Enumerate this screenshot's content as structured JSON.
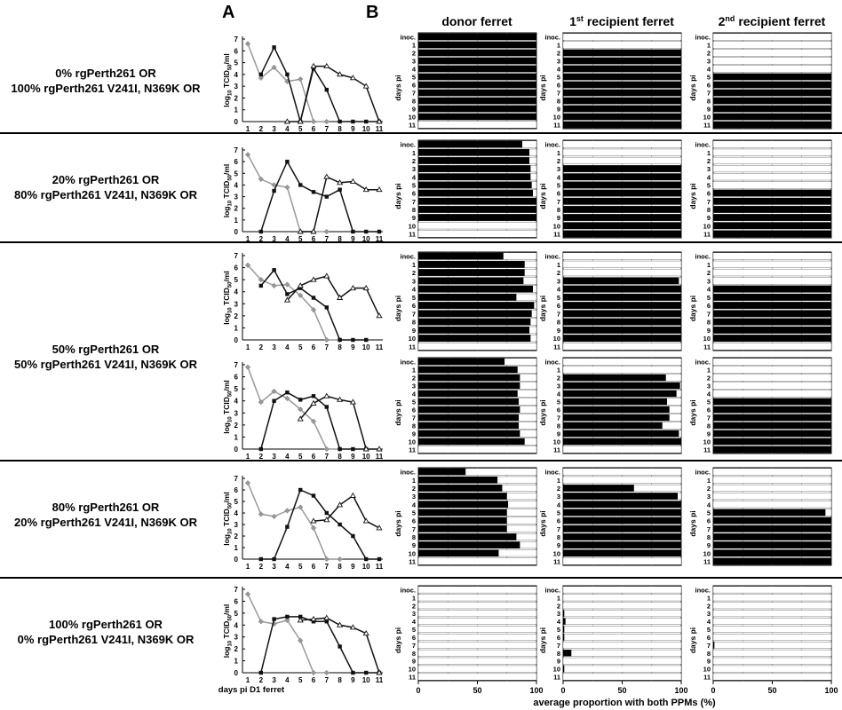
{
  "panel_letters": [
    "A",
    "B"
  ],
  "columns": [
    "donor ferret",
    "recipient ferret",
    "recipient ferret"
  ],
  "column_prefixes": [
    "",
    "1",
    "2"
  ],
  "column_sups": [
    "",
    "st",
    "nd"
  ],
  "groups": [
    {
      "line1": "0% rgPerth261 OR",
      "line2": "100% rgPerth261 V241I, N369K OR"
    },
    {
      "line1": "20% rgPerth261 OR",
      "line2": "80% rgPerth261 V241I, N369K OR"
    },
    {
      "line1": "50% rgPerth261 OR",
      "line2": "50% rgPerth261 V241I, N369K OR"
    },
    {
      "line1": "80% rgPerth261 OR",
      "line2": "20% rgPerth261 V241I, N369K OR"
    },
    {
      "line1": "100% rgPerth261 OR",
      "line2": "0% rgPerth261 V241I, N369K OR"
    }
  ],
  "ylabel_main": "log",
  "ylabel_sub": "10",
  "ylabel_mid": " TCID",
  "ylabel_sub2": "50",
  "ylabel_end": "/ml",
  "xlabel_a": "days pi D1 ferret",
  "xlabel_b": "average proportion with both PPMs (%)",
  "days_label": "days pi",
  "bar_rows": [
    "inoc.",
    "1",
    "2",
    "3",
    "4",
    "5",
    "6",
    "7",
    "8",
    "9",
    "10",
    "11"
  ],
  "bar_ticks": [
    "0",
    "50",
    "100"
  ],
  "chart_data": [
    {
      "type": "line",
      "panel": "A-1",
      "x": [
        1,
        2,
        3,
        4,
        5,
        6,
        7,
        8,
        9,
        10,
        11
      ],
      "ylim": [
        0,
        7
      ],
      "yticks": [
        "0",
        "1",
        "2",
        "3",
        "4",
        "5",
        "6",
        "7"
      ],
      "series": [
        {
          "marker": "grey-diamond",
          "color": "#999999",
          "values": [
            6.6,
            3.7,
            4.6,
            3.4,
            3.6,
            0,
            0,
            null,
            null,
            null,
            null
          ]
        },
        {
          "marker": "black-square",
          "color": "#111111",
          "values": [
            null,
            4.0,
            6.3,
            4.0,
            0,
            4.5,
            2.7,
            0,
            0,
            0,
            0
          ]
        },
        {
          "marker": "open-triangle",
          "color": "#111111",
          "values": [
            null,
            null,
            null,
            0,
            0,
            4.7,
            4.7,
            4.0,
            3.7,
            3.0,
            0
          ]
        }
      ]
    },
    {
      "type": "line",
      "panel": "A-2",
      "x": [
        1,
        2,
        3,
        4,
        5,
        6,
        7,
        8,
        9,
        10,
        11
      ],
      "ylim": [
        0,
        7
      ],
      "yticks": [
        "0",
        "1",
        "2",
        "3",
        "4",
        "5",
        "6",
        "7"
      ],
      "series": [
        {
          "marker": "grey-diamond",
          "color": "#999999",
          "values": [
            6.6,
            4.5,
            4.0,
            3.8,
            0,
            0,
            0,
            null,
            null,
            null,
            null
          ]
        },
        {
          "marker": "black-square",
          "color": "#111111",
          "values": [
            null,
            0,
            3.5,
            6.0,
            4.0,
            3.4,
            3.0,
            3.6,
            0,
            0,
            0
          ]
        },
        {
          "marker": "open-triangle",
          "color": "#111111",
          "values": [
            null,
            null,
            null,
            null,
            0,
            0,
            4.7,
            4.2,
            4.3,
            3.6,
            3.6
          ]
        }
      ]
    },
    {
      "type": "line",
      "panel": "A-3",
      "x": [
        1,
        2,
        3,
        4,
        5,
        6,
        7,
        8,
        9,
        10,
        11
      ],
      "ylim": [
        0,
        7
      ],
      "yticks": [
        "0",
        "1",
        "2",
        "3",
        "4",
        "5",
        "6",
        "7"
      ],
      "series": [
        {
          "marker": "grey-diamond",
          "color": "#999999",
          "values": [
            6.2,
            5.0,
            4.5,
            4.6,
            3.7,
            2.5,
            0,
            0,
            null,
            null,
            null
          ]
        },
        {
          "marker": "black-square",
          "color": "#111111",
          "values": [
            null,
            4.5,
            5.8,
            3.8,
            4.3,
            3.5,
            2.7,
            0,
            0,
            0,
            null
          ]
        },
        {
          "marker": "open-triangle",
          "color": "#111111",
          "values": [
            null,
            null,
            null,
            3.3,
            4.5,
            5.0,
            5.3,
            3.5,
            4.3,
            4.3,
            2.0
          ]
        }
      ]
    },
    {
      "type": "line",
      "panel": "A-4",
      "x": [
        1,
        2,
        3,
        4,
        5,
        6,
        7,
        8,
        9,
        10,
        11
      ],
      "ylim": [
        0,
        7
      ],
      "yticks": [
        "0",
        "1",
        "2",
        "3",
        "4",
        "5",
        "6",
        "7"
      ],
      "series": [
        {
          "marker": "grey-diamond",
          "color": "#999999",
          "values": [
            6.8,
            3.9,
            4.8,
            4.2,
            3.3,
            2.3,
            0,
            0,
            null,
            null,
            null
          ]
        },
        {
          "marker": "black-square",
          "color": "#111111",
          "values": [
            null,
            0,
            4.0,
            4.7,
            4.1,
            4.4,
            3.5,
            0,
            0,
            0,
            null
          ]
        },
        {
          "marker": "open-triangle",
          "color": "#111111",
          "values": [
            null,
            null,
            null,
            null,
            2.5,
            3.8,
            4.4,
            4.1,
            3.9,
            0,
            0
          ]
        }
      ]
    },
    {
      "type": "line",
      "panel": "A-5",
      "x": [
        1,
        2,
        3,
        4,
        5,
        6,
        7,
        8,
        9,
        10,
        11
      ],
      "ylim": [
        0,
        7
      ],
      "yticks": [
        "0",
        "1",
        "2",
        "3",
        "4",
        "5",
        "6",
        "7"
      ],
      "series": [
        {
          "marker": "grey-diamond",
          "color": "#999999",
          "values": [
            6.6,
            3.9,
            3.7,
            4.2,
            4.5,
            2.7,
            0,
            0,
            null,
            null,
            null
          ]
        },
        {
          "marker": "black-square",
          "color": "#111111",
          "values": [
            null,
            0,
            0,
            2.8,
            6.0,
            5.5,
            4.0,
            3.0,
            2.0,
            0,
            0
          ]
        },
        {
          "marker": "open-triangle",
          "color": "#111111",
          "values": [
            null,
            null,
            null,
            null,
            null,
            3.3,
            3.4,
            4.7,
            5.5,
            3.3,
            2.7
          ]
        }
      ]
    },
    {
      "type": "line",
      "panel": "A-6",
      "x": [
        1,
        2,
        3,
        4,
        5,
        6,
        7,
        8,
        9,
        10,
        11
      ],
      "ylim": [
        0,
        7
      ],
      "yticks": [
        "0",
        "1",
        "2",
        "3",
        "4",
        "5",
        "6",
        "7"
      ],
      "xlabel": "days pi D1 ferret",
      "series": [
        {
          "marker": "grey-diamond",
          "color": "#999999",
          "values": [
            6.6,
            4.3,
            4.1,
            4.4,
            2.7,
            0,
            0,
            null,
            null,
            null,
            null
          ]
        },
        {
          "marker": "black-square",
          "color": "#111111",
          "values": [
            null,
            0,
            4.5,
            4.7,
            4.7,
            4.3,
            4.3,
            2.2,
            0,
            0,
            0
          ]
        },
        {
          "marker": "open-triangle",
          "color": "#111111",
          "values": [
            null,
            null,
            null,
            null,
            4.4,
            4.5,
            4.6,
            4.0,
            3.8,
            3.3,
            0
          ]
        }
      ]
    },
    {
      "type": "bar",
      "panel": "B-1-donor",
      "row": 1,
      "col": 0,
      "categories": [
        "inoc.",
        "1",
        "2",
        "3",
        "4",
        "5",
        "6",
        "7",
        "8",
        "9",
        "10",
        "11"
      ],
      "values": [
        100,
        100,
        100,
        100,
        100,
        100,
        100,
        100,
        100,
        100,
        100,
        0
      ],
      "xlim": [
        0,
        100
      ]
    },
    {
      "type": "bar",
      "panel": "B-1-r1",
      "row": 1,
      "col": 1,
      "categories": [
        "inoc.",
        "1",
        "2",
        "3",
        "4",
        "5",
        "6",
        "7",
        "8",
        "9",
        "10",
        "11"
      ],
      "values": [
        0,
        0,
        100,
        100,
        100,
        100,
        100,
        100,
        100,
        100,
        100,
        100
      ],
      "xlim": [
        0,
        100
      ]
    },
    {
      "type": "bar",
      "panel": "B-1-r2",
      "row": 1,
      "col": 2,
      "categories": [
        "inoc.",
        "1",
        "2",
        "3",
        "4",
        "5",
        "6",
        "7",
        "8",
        "9",
        "10",
        "11"
      ],
      "values": [
        0,
        0,
        0,
        0,
        0,
        100,
        100,
        100,
        100,
        100,
        100,
        100
      ],
      "xlim": [
        0,
        100
      ]
    },
    {
      "type": "bar",
      "panel": "B-2-donor",
      "row": 2,
      "col": 0,
      "categories": [
        "inoc.",
        "1",
        "2",
        "3",
        "4",
        "5",
        "6",
        "7",
        "8",
        "9",
        "10",
        "11"
      ],
      "values": [
        88,
        94,
        94,
        95,
        95,
        96,
        97,
        100,
        100,
        100,
        0,
        0
      ],
      "xlim": [
        0,
        100
      ]
    },
    {
      "type": "bar",
      "panel": "B-2-r1",
      "row": 2,
      "col": 1,
      "categories": [
        "inoc.",
        "1",
        "2",
        "3",
        "4",
        "5",
        "6",
        "7",
        "8",
        "9",
        "10",
        "11"
      ],
      "values": [
        0,
        0,
        0,
        100,
        100,
        100,
        100,
        100,
        100,
        100,
        100,
        100
      ],
      "xlim": [
        0,
        100
      ]
    },
    {
      "type": "bar",
      "panel": "B-2-r2",
      "row": 2,
      "col": 2,
      "categories": [
        "inoc.",
        "1",
        "2",
        "3",
        "4",
        "5",
        "6",
        "7",
        "8",
        "9",
        "10",
        "11"
      ],
      "values": [
        0,
        0,
        0,
        0,
        0,
        0,
        100,
        100,
        100,
        100,
        100,
        100
      ],
      "xlim": [
        0,
        100
      ]
    },
    {
      "type": "bar",
      "panel": "B-3-donor",
      "row": 3,
      "col": 0,
      "categories": [
        "inoc.",
        "1",
        "2",
        "3",
        "4",
        "5",
        "6",
        "7",
        "8",
        "9",
        "10",
        "11"
      ],
      "values": [
        72,
        90,
        90,
        89,
        97,
        83,
        98,
        96,
        95,
        94,
        95,
        0
      ],
      "xlim": [
        0,
        100
      ]
    },
    {
      "type": "bar",
      "panel": "B-3-r1",
      "row": 3,
      "col": 1,
      "categories": [
        "inoc.",
        "1",
        "2",
        "3",
        "4",
        "5",
        "6",
        "7",
        "8",
        "9",
        "10",
        "11"
      ],
      "values": [
        0,
        0,
        0,
        98,
        100,
        100,
        100,
        100,
        100,
        100,
        100,
        0
      ],
      "xlim": [
        0,
        100
      ]
    },
    {
      "type": "bar",
      "panel": "B-3-r2",
      "row": 3,
      "col": 2,
      "categories": [
        "inoc.",
        "1",
        "2",
        "3",
        "4",
        "5",
        "6",
        "7",
        "8",
        "9",
        "10",
        "11"
      ],
      "values": [
        0,
        0,
        0,
        0,
        100,
        100,
        100,
        100,
        100,
        100,
        100,
        0
      ],
      "xlim": [
        0,
        100
      ]
    },
    {
      "type": "bar",
      "panel": "B-4-donor",
      "row": 4,
      "col": 0,
      "categories": [
        "inoc.",
        "1",
        "2",
        "3",
        "4",
        "5",
        "6",
        "7",
        "8",
        "9",
        "10",
        "11"
      ],
      "values": [
        73,
        84,
        86,
        86,
        84,
        85,
        86,
        85,
        85,
        86,
        90,
        0
      ],
      "xlim": [
        0,
        100
      ]
    },
    {
      "type": "bar",
      "panel": "B-4-r1",
      "row": 4,
      "col": 1,
      "categories": [
        "inoc.",
        "1",
        "2",
        "3",
        "4",
        "5",
        "6",
        "7",
        "8",
        "9",
        "10",
        "11"
      ],
      "values": [
        0,
        0,
        87,
        99,
        96,
        88,
        90,
        90,
        84,
        98,
        100,
        0
      ],
      "xlim": [
        0,
        100
      ]
    },
    {
      "type": "bar",
      "panel": "B-4-r2",
      "row": 4,
      "col": 2,
      "categories": [
        "inoc.",
        "1",
        "2",
        "3",
        "4",
        "5",
        "6",
        "7",
        "8",
        "9",
        "10",
        "11"
      ],
      "values": [
        0,
        0,
        0,
        0,
        0,
        100,
        100,
        100,
        100,
        100,
        100,
        100
      ],
      "xlim": [
        0,
        100
      ]
    },
    {
      "type": "bar",
      "panel": "B-5-donor",
      "row": 5,
      "col": 0,
      "categories": [
        "inoc.",
        "1",
        "2",
        "3",
        "4",
        "5",
        "6",
        "7",
        "8",
        "9",
        "10",
        "11"
      ],
      "values": [
        40,
        67,
        71,
        75,
        76,
        75,
        75,
        75,
        83,
        86,
        68,
        0
      ],
      "xlim": [
        0,
        100
      ]
    },
    {
      "type": "bar",
      "panel": "B-5-r1",
      "row": 5,
      "col": 1,
      "categories": [
        "inoc.",
        "1",
        "2",
        "3",
        "4",
        "5",
        "6",
        "7",
        "8",
        "9",
        "10",
        "11"
      ],
      "values": [
        0,
        0,
        60,
        97,
        100,
        100,
        100,
        100,
        100,
        100,
        100,
        0
      ],
      "xlim": [
        0,
        100
      ]
    },
    {
      "type": "bar",
      "panel": "B-5-r2",
      "row": 5,
      "col": 2,
      "categories": [
        "inoc.",
        "1",
        "2",
        "3",
        "4",
        "5",
        "6",
        "7",
        "8",
        "9",
        "10",
        "11"
      ],
      "values": [
        0,
        0,
        0,
        0,
        0,
        95,
        100,
        100,
        100,
        100,
        100,
        100
      ],
      "xlim": [
        0,
        100
      ]
    },
    {
      "type": "bar",
      "panel": "B-6-donor",
      "row": 6,
      "col": 0,
      "categories": [
        "inoc.",
        "1",
        "2",
        "3",
        "4",
        "5",
        "6",
        "7",
        "8",
        "9",
        "10",
        "11"
      ],
      "values": [
        0,
        0,
        0,
        0,
        0,
        0,
        0,
        0,
        0,
        0,
        0,
        0
      ],
      "xlim": [
        0,
        100
      ]
    },
    {
      "type": "bar",
      "panel": "B-6-r1",
      "row": 6,
      "col": 1,
      "categories": [
        "inoc.",
        "1",
        "2",
        "3",
        "4",
        "5",
        "6",
        "7",
        "8",
        "9",
        "10",
        "11"
      ],
      "values": [
        0,
        0,
        0,
        1,
        2,
        1,
        1,
        0,
        7,
        0,
        1,
        0
      ],
      "xlim": [
        0,
        100
      ]
    },
    {
      "type": "bar",
      "panel": "B-6-r2",
      "row": 6,
      "col": 2,
      "categories": [
        "inoc.",
        "1",
        "2",
        "3",
        "4",
        "5",
        "6",
        "7",
        "8",
        "9",
        "10",
        "11"
      ],
      "values": [
        0,
        0,
        0,
        0,
        0,
        0,
        0,
        1,
        0,
        0,
        0,
        0
      ],
      "xlim": [
        0,
        100
      ]
    }
  ]
}
